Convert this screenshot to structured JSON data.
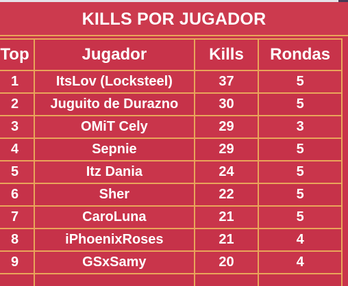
{
  "title": "KILLS POR JUGADOR",
  "columns": {
    "top": "Top",
    "player": "Jugador",
    "kills": "Kills",
    "rounds": "Rondas"
  },
  "rows": [
    {
      "top": "1",
      "player": "ItsLov (Locksteel)",
      "kills": "37",
      "rounds": "5"
    },
    {
      "top": "2",
      "player": "Juguito de Durazno",
      "kills": "30",
      "rounds": "5"
    },
    {
      "top": "3",
      "player": "OMiT Cely",
      "kills": "29",
      "rounds": "3"
    },
    {
      "top": "4",
      "player": "Sepnie",
      "kills": "29",
      "rounds": "5"
    },
    {
      "top": "5",
      "player": "Itz Dania",
      "kills": "24",
      "rounds": "5"
    },
    {
      "top": "6",
      "player": "Sher",
      "kills": "22",
      "rounds": "5"
    },
    {
      "top": "7",
      "player": "CaroLuna",
      "kills": "21",
      "rounds": "5"
    },
    {
      "top": "8",
      "player": "iPhoenixRoses",
      "kills": "21",
      "rounds": "4"
    },
    {
      "top": "9",
      "player": "GSxSamy",
      "kills": "20",
      "rounds": "4"
    }
  ],
  "colors": {
    "background": "#c9344b",
    "grid": "#e9a55a",
    "text": "#ffffff"
  }
}
